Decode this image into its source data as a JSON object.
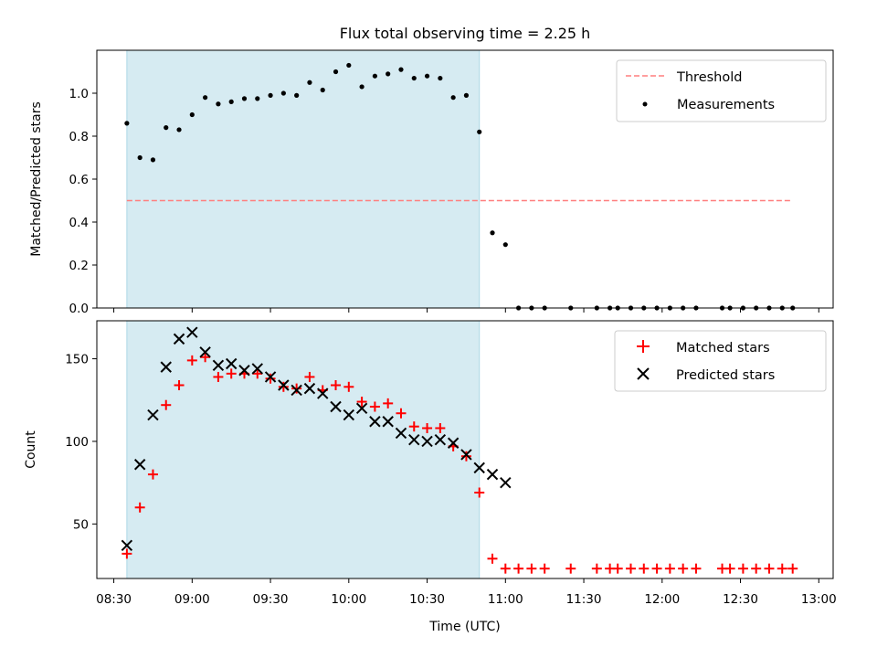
{
  "chart_data": [
    {
      "type": "scatter",
      "title": "Flux total observing time = 2.25 h",
      "xlabel": "",
      "ylabel": "Matched/Predicted stars",
      "ylim": [
        0,
        1.2
      ],
      "yticks": [
        "0.0",
        "0.2",
        "0.4",
        "0.6",
        "0.8",
        "1.0"
      ],
      "legend_position": "top-right",
      "shaded_interval": [
        "08:35",
        "10:50"
      ],
      "threshold": {
        "name": "Threshold",
        "value": 0.5,
        "x_range": [
          "08:35",
          "12:50"
        ],
        "color": "#ff7f7f",
        "style": "dashed"
      },
      "series": [
        {
          "name": "Measurements",
          "marker": "dot",
          "color": "#000000",
          "points": [
            [
              "08:35",
              0.86
            ],
            [
              "08:40",
              0.7
            ],
            [
              "08:45",
              0.69
            ],
            [
              "08:50",
              0.84
            ],
            [
              "08:55",
              0.83
            ],
            [
              "09:00",
              0.9
            ],
            [
              "09:05",
              0.98
            ],
            [
              "09:10",
              0.95
            ],
            [
              "09:15",
              0.96
            ],
            [
              "09:20",
              0.975
            ],
            [
              "09:25",
              0.975
            ],
            [
              "09:30",
              0.99
            ],
            [
              "09:35",
              1.0
            ],
            [
              "09:40",
              0.99
            ],
            [
              "09:45",
              1.05
            ],
            [
              "09:50",
              1.015
            ],
            [
              "09:55",
              1.1
            ],
            [
              "10:00",
              1.13
            ],
            [
              "10:05",
              1.03
            ],
            [
              "10:10",
              1.08
            ],
            [
              "10:15",
              1.09
            ],
            [
              "10:20",
              1.11
            ],
            [
              "10:25",
              1.07
            ],
            [
              "10:30",
              1.08
            ],
            [
              "10:35",
              1.07
            ],
            [
              "10:40",
              0.98
            ],
            [
              "10:45",
              0.99
            ],
            [
              "10:50",
              0.82
            ],
            [
              "10:55",
              0.35
            ],
            [
              "11:00",
              0.295
            ],
            [
              "11:05",
              0
            ],
            [
              "11:10",
              0
            ],
            [
              "11:15",
              0
            ],
            [
              "11:25",
              0
            ],
            [
              "11:35",
              0
            ],
            [
              "11:40",
              0
            ],
            [
              "11:43",
              0
            ],
            [
              "11:48",
              0
            ],
            [
              "11:53",
              0
            ],
            [
              "11:58",
              0
            ],
            [
              "12:03",
              0
            ],
            [
              "12:08",
              0
            ],
            [
              "12:13",
              0
            ],
            [
              "12:23",
              0
            ],
            [
              "12:26",
              0
            ],
            [
              "12:31",
              0
            ],
            [
              "12:36",
              0
            ],
            [
              "12:41",
              0
            ],
            [
              "12:46",
              0
            ],
            [
              "12:50",
              0
            ]
          ]
        }
      ]
    },
    {
      "type": "scatter",
      "title": "",
      "xlabel": "Time (UTC)",
      "ylabel": "Count",
      "ylim": [
        17,
        173
      ],
      "yticks": [
        "50",
        "100",
        "150"
      ],
      "xticks": [
        "08:30",
        "09:00",
        "09:30",
        "10:00",
        "10:30",
        "11:00",
        "11:30",
        "12:00",
        "12:30",
        "13:00"
      ],
      "legend_position": "top-right",
      "shaded_interval": [
        "08:35",
        "10:50"
      ],
      "series": [
        {
          "name": "Matched stars",
          "marker": "plus",
          "color": "#ff0000",
          "points": [
            [
              "08:35",
              32
            ],
            [
              "08:40",
              60
            ],
            [
              "08:45",
              80
            ],
            [
              "08:50",
              122
            ],
            [
              "08:55",
              134
            ],
            [
              "09:00",
              149
            ],
            [
              "09:05",
              151
            ],
            [
              "09:10",
              139
            ],
            [
              "09:15",
              141
            ],
            [
              "09:20",
              141
            ],
            [
              "09:25",
              141
            ],
            [
              "09:30",
              138
            ],
            [
              "09:35",
              133
            ],
            [
              "09:40",
              132
            ],
            [
              "09:45",
              139
            ],
            [
              "09:50",
              131
            ],
            [
              "09:55",
              134
            ],
            [
              "10:00",
              133
            ],
            [
              "10:05",
              124
            ],
            [
              "10:10",
              121
            ],
            [
              "10:15",
              123
            ],
            [
              "10:20",
              117
            ],
            [
              "10:25",
              109
            ],
            [
              "10:30",
              108
            ],
            [
              "10:35",
              108
            ],
            [
              "10:40",
              97
            ],
            [
              "10:45",
              91
            ],
            [
              "10:50",
              69
            ],
            [
              "10:55",
              29
            ],
            [
              "11:00",
              23
            ],
            [
              "11:05",
              23
            ],
            [
              "11:10",
              23
            ],
            [
              "11:15",
              23
            ],
            [
              "11:25",
              23
            ],
            [
              "11:35",
              23
            ],
            [
              "11:40",
              23
            ],
            [
              "11:43",
              23
            ],
            [
              "11:48",
              23
            ],
            [
              "11:53",
              23
            ],
            [
              "11:58",
              23
            ],
            [
              "12:03",
              23
            ],
            [
              "12:08",
              23
            ],
            [
              "12:13",
              23
            ],
            [
              "12:23",
              23
            ],
            [
              "12:26",
              23
            ],
            [
              "12:31",
              23
            ],
            [
              "12:36",
              23
            ],
            [
              "12:41",
              23
            ],
            [
              "12:46",
              23
            ],
            [
              "12:50",
              23
            ]
          ]
        },
        {
          "name": "Predicted stars",
          "marker": "x",
          "color": "#000000",
          "points": [
            [
              "08:35",
              37
            ],
            [
              "08:40",
              86
            ],
            [
              "08:45",
              116
            ],
            [
              "08:50",
              145
            ],
            [
              "08:55",
              162
            ],
            [
              "09:00",
              166
            ],
            [
              "09:05",
              154
            ],
            [
              "09:10",
              146
            ],
            [
              "09:15",
              147
            ],
            [
              "09:20",
              143
            ],
            [
              "09:25",
              144
            ],
            [
              "09:30",
              139
            ],
            [
              "09:35",
              134
            ],
            [
              "09:40",
              131
            ],
            [
              "09:45",
              132
            ],
            [
              "09:50",
              129
            ],
            [
              "09:55",
              121
            ],
            [
              "10:00",
              116
            ],
            [
              "10:05",
              120
            ],
            [
              "10:10",
              112
            ],
            [
              "10:15",
              112
            ],
            [
              "10:20",
              105
            ],
            [
              "10:25",
              101
            ],
            [
              "10:30",
              100
            ],
            [
              "10:35",
              101
            ],
            [
              "10:40",
              99
            ],
            [
              "10:45",
              92
            ],
            [
              "10:50",
              84
            ],
            [
              "10:55",
              80
            ],
            [
              "11:00",
              75
            ]
          ]
        }
      ]
    }
  ]
}
